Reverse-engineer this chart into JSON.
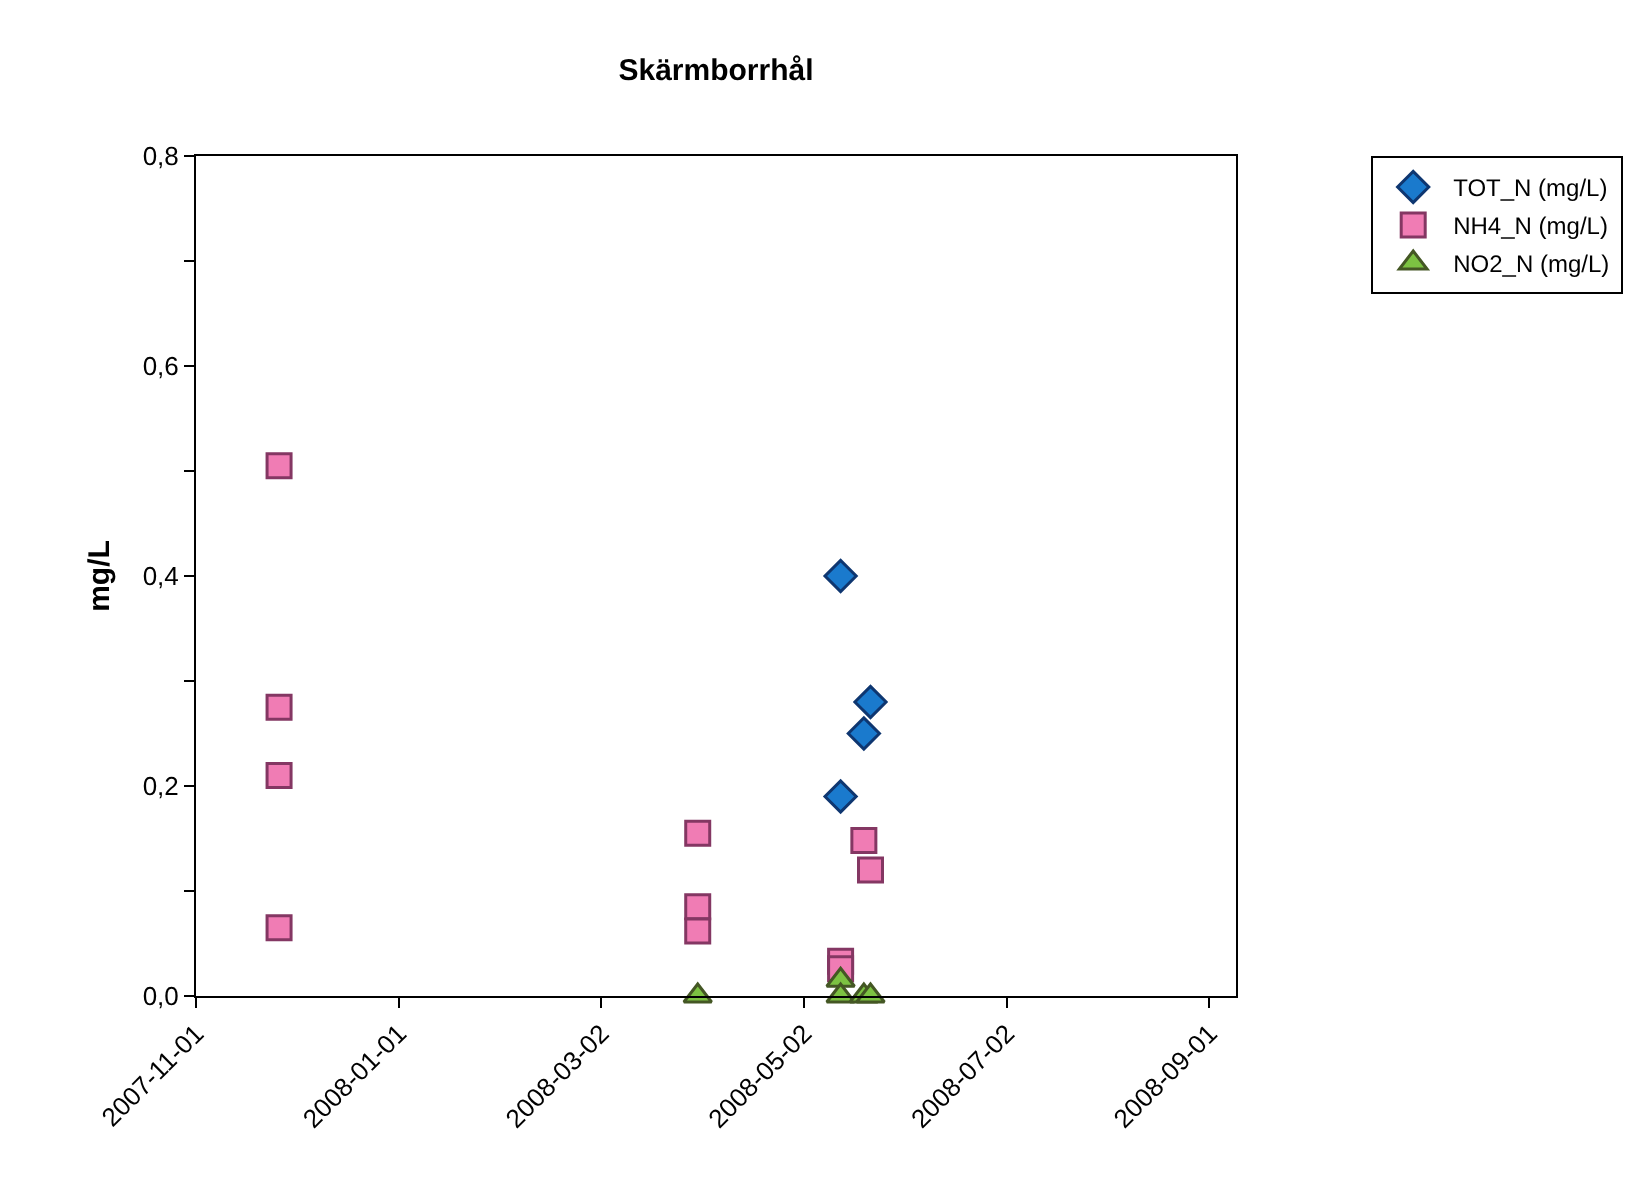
{
  "chart_data": {
    "type": "scatter",
    "title": "Skärmborrhål",
    "ylabel": "mg/L",
    "series": [
      {
        "name": "TOT_N (mg/L)",
        "color": "#1a7acd",
        "marker": "diamond",
        "x": [
          "2008-05-13",
          "2008-05-13",
          "2008-05-20",
          "2008-05-22"
        ],
        "values": [
          0.4,
          0.19,
          0.25,
          0.28
        ]
      },
      {
        "name": "NH4_N (mg/L)",
        "color": "#f07cb4",
        "marker": "square",
        "x": [
          "2007-11-26",
          "2007-11-26",
          "2007-11-26",
          "2007-11-26",
          "2008-03-31",
          "2008-03-31",
          "2008-03-31",
          "2008-05-13",
          "2008-05-13",
          "2008-05-20",
          "2008-05-22"
        ],
        "values": [
          0.505,
          0.275,
          0.21,
          0.065,
          0.155,
          0.085,
          0.062,
          0.033,
          0.026,
          0.148,
          0.12
        ]
      },
      {
        "name": "NO2_N (mg/L)",
        "color": "#7cc242",
        "marker": "triangle",
        "x": [
          "2008-03-31",
          "2008-05-13",
          "2008-05-13",
          "2008-05-20",
          "2008-05-22"
        ],
        "values": [
          0.0,
          0.015,
          0.0,
          0.0,
          0.0
        ]
      }
    ],
    "xlim": [
      "2007-11-01",
      "2008-09-09"
    ],
    "xticks": [
      "2007-11-01",
      "2008-01-01",
      "2008-03-02",
      "2008-05-02",
      "2008-07-02",
      "2008-09-01"
    ],
    "ylim": [
      0,
      0.8
    ],
    "yticks": [
      {
        "value": 0,
        "label": "0,0"
      },
      {
        "value": 0.1,
        "label": null
      },
      {
        "value": 0.2,
        "label": "0,2"
      },
      {
        "value": 0.3,
        "label": null
      },
      {
        "value": 0.4,
        "label": "0,4"
      },
      {
        "value": 0.5,
        "label": null
      },
      {
        "value": 0.6,
        "label": "0,6"
      },
      {
        "value": 0.7,
        "label": null
      },
      {
        "value": 0.8,
        "label": "0,8"
      }
    ],
    "legend": "top right"
  }
}
